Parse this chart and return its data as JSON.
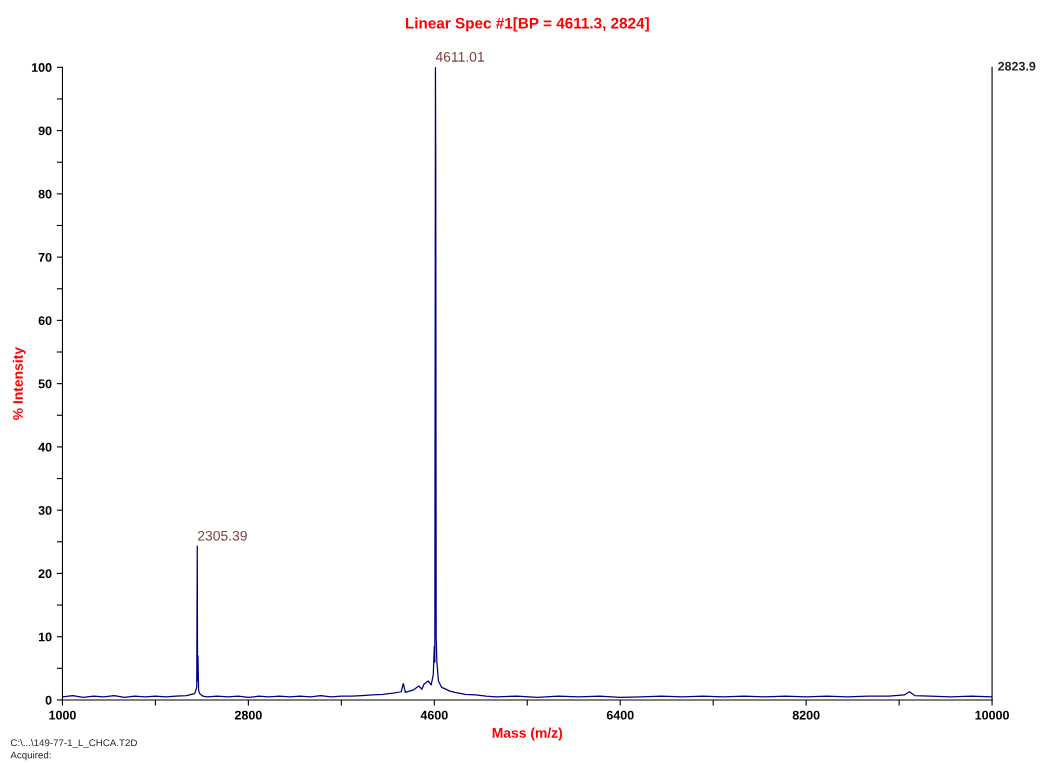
{
  "chart_data": {
    "type": "line",
    "title": "Linear Spec #1[BP = 4611.3, 2824]",
    "xlabel": "Mass (m/z)",
    "ylabel": "% Intensity",
    "x": [
      1000,
      1100,
      1200,
      1300,
      1400,
      1500,
      1600,
      1700,
      1800,
      1900,
      2000,
      2100,
      2200,
      2280,
      2300,
      2305,
      2308,
      2312,
      2318,
      2330,
      2360,
      2400,
      2500,
      2600,
      2700,
      2800,
      2900,
      3000,
      3100,
      3200,
      3300,
      3400,
      3500,
      3600,
      3700,
      3800,
      3900,
      4000,
      4100,
      4200,
      4280,
      4300,
      4320,
      4400,
      4450,
      4480,
      4500,
      4540,
      4570,
      4590,
      4600,
      4605,
      4611,
      4614,
      4618,
      4625,
      4640,
      4670,
      4700,
      4750,
      4800,
      4900,
      5000,
      5100,
      5200,
      5400,
      5600,
      5800,
      6000,
      6200,
      6400,
      6600,
      6800,
      7000,
      7200,
      7400,
      7600,
      7800,
      8000,
      8200,
      8400,
      8600,
      8800,
      9000,
      9150,
      9200,
      9250,
      9400,
      9600,
      9800,
      10000
    ],
    "series": [
      {
        "color": "#00007f",
        "values": [
          0.5,
          0.7,
          0.4,
          0.6,
          0.5,
          0.7,
          0.4,
          0.6,
          0.5,
          0.6,
          0.5,
          0.6,
          0.7,
          1.0,
          2.0,
          24.3,
          3,
          7,
          1.5,
          1.0,
          0.6,
          0.5,
          0.6,
          0.5,
          0.6,
          0.4,
          0.6,
          0.5,
          0.6,
          0.5,
          0.6,
          0.5,
          0.7,
          0.5,
          0.6,
          0.6,
          0.7,
          0.8,
          0.9,
          1.1,
          1.3,
          2.6,
          1.2,
          1.6,
          2.2,
          1.7,
          2.5,
          3.0,
          2.4,
          4,
          8.5,
          6,
          100,
          85,
          10,
          6,
          3,
          2,
          1.8,
          1.4,
          1.2,
          0.9,
          0.8,
          0.6,
          0.5,
          0.6,
          0.4,
          0.6,
          0.5,
          0.6,
          0.4,
          0.5,
          0.6,
          0.5,
          0.6,
          0.5,
          0.6,
          0.5,
          0.6,
          0.5,
          0.6,
          0.5,
          0.6,
          0.6,
          0.8,
          1.3,
          0.7,
          0.6,
          0.5,
          0.6,
          0.5
        ]
      }
    ],
    "xlim": [
      1000,
      10000
    ],
    "xticks": [
      1000,
      {
        "value": 1900,
        "label": null
      },
      2800,
      {
        "value": 3700,
        "label": null
      },
      4600,
      {
        "value": 5500,
        "label": null
      },
      6400,
      {
        "value": 7300,
        "label": null
      },
      8200,
      {
        "value": 9100,
        "label": null
      },
      10000
    ],
    "ylim": [
      0,
      100
    ],
    "yticks": [
      0,
      {
        "value": 5,
        "label": null
      },
      10,
      {
        "value": 15,
        "label": null
      },
      20,
      {
        "value": 25,
        "label": null
      },
      30,
      {
        "value": 35,
        "label": null
      },
      40,
      {
        "value": 45,
        "label": null
      },
      50,
      {
        "value": 55,
        "label": null
      },
      60,
      {
        "value": 65,
        "label": null
      },
      70,
      {
        "value": 75,
        "label": null
      },
      80,
      {
        "value": 85,
        "label": null
      },
      90,
      {
        "value": 95,
        "label": null
      },
      100
    ],
    "grid": false,
    "legend": false,
    "marker": "none",
    "line_style": "solid",
    "annotations": [
      {
        "text": "2305.39",
        "x": 2305.39,
        "y": 24.3
      },
      {
        "text": "4611.01",
        "x": 4611.01,
        "y": 100
      },
      "2823.9",
      "C:\\...\\149-77-1_L_CHCA.T2D",
      "Acquired:"
    ]
  }
}
